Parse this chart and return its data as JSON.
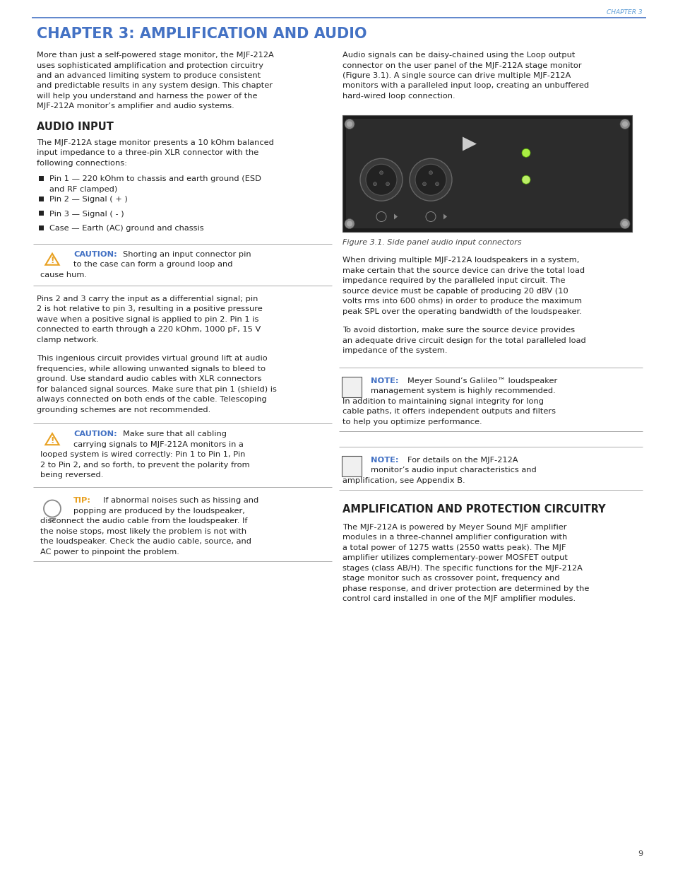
{
  "page_bg": "#ffffff",
  "header_color": "#5b9bd5",
  "title_color": "#4472c4",
  "body_color": "#222222",
  "chapter_label": "CHAPTER 3",
  "main_title": "CHAPTER 3: AMPLIFICATION AND AUDIO",
  "section1": "AUDIO INPUT",
  "section2": "AMPLIFICATION AND PROTECTION CIRCUITRY",
  "caution_color": "#e8a020",
  "note_color": "#4472c4",
  "line_color": "#aaaaaa",
  "header_line_color": "#4472c4",
  "page_number": "9",
  "body_fontsize": 8.2,
  "title_fontsize": 15,
  "section_fontsize": 10.5,
  "small_fontsize": 7.5,
  "caption_fontsize": 8.0
}
